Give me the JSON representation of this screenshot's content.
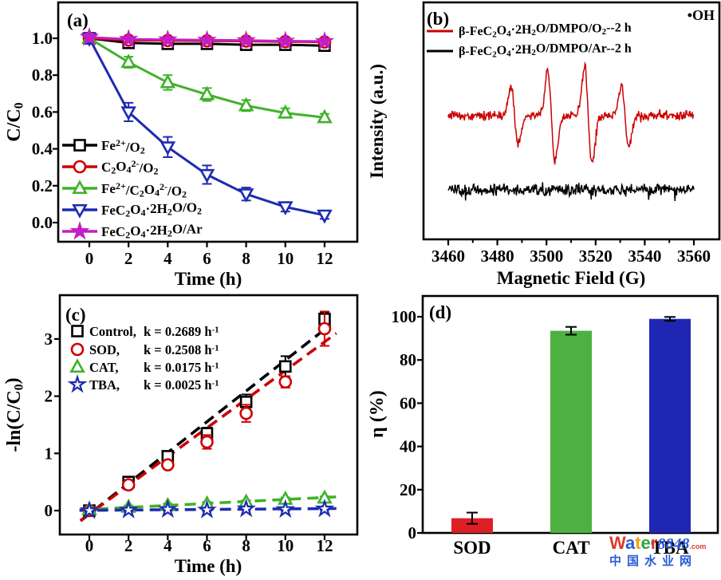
{
  "figure": {
    "background": "#ffffff",
    "watermark": {
      "letters": [
        {
          "ch": "W",
          "color": "#e0392b"
        },
        {
          "ch": "a",
          "color": "#2a5bd7"
        },
        {
          "ch": "t",
          "color": "#f5a100"
        },
        {
          "ch": "e",
          "color": "#2fa43c"
        },
        {
          "ch": "r",
          "color": "#e0392b"
        }
      ],
      "number": "8848",
      "number_color": "#2a5bd7",
      "suffix": ".com",
      "suffix_color": "#e0392b",
      "subtitle": "中国水业网",
      "subtitle_color": "#2a5bd7"
    }
  },
  "chart_data": [
    {
      "id": "a",
      "type": "line",
      "panel_label": "(a)",
      "xlabel": "Time (h)",
      "ylabel": "C/C_{0}",
      "x_tick_labels": [
        "0",
        "2",
        "4",
        "6",
        "8",
        "10",
        "12"
      ],
      "x_tick_values": [
        0,
        2,
        4,
        6,
        8,
        10,
        12
      ],
      "y_tick_labels": [
        "0.0",
        "0.2",
        "0.4",
        "0.6",
        "0.8",
        "1.0"
      ],
      "y_tick_values": [
        0,
        0.2,
        0.4,
        0.6,
        0.8,
        1.0
      ],
      "xlim": [
        -1.6,
        13.7
      ],
      "ylim": [
        -0.1,
        1.19
      ],
      "grid": false,
      "legend_position": "lower-left",
      "x": [
        0,
        2,
        4,
        6,
        8,
        10,
        12
      ],
      "series": [
        {
          "name": "Fe^{2+}/O_{2}",
          "color": "#000000",
          "marker": "square",
          "filled": false,
          "values": [
            1.0,
            0.975,
            0.97,
            0.97,
            0.965,
            0.965,
            0.96
          ],
          "err": [
            0.025,
            0.02,
            0.02,
            0.02,
            0.02,
            0.02,
            0.025
          ]
        },
        {
          "name": "C_{2}O_{4}^{2-}/O_{2}",
          "color": "#cc0000",
          "marker": "circle",
          "filled": false,
          "values": [
            1.0,
            0.99,
            0.988,
            0.986,
            0.985,
            0.982,
            0.98
          ],
          "err": [
            0.02,
            0.015,
            0.015,
            0.015,
            0.015,
            0.015,
            0.015
          ]
        },
        {
          "name": "Fe^{2+}/C_{2}O_{4}^{2-}/O_{2}",
          "color": "#3fb229",
          "marker": "triangle-up",
          "filled": false,
          "values": [
            1.0,
            0.87,
            0.76,
            0.695,
            0.635,
            0.595,
            0.57
          ],
          "err": [
            0.025,
            0.03,
            0.04,
            0.035,
            0.03,
            0.025,
            0.02
          ]
        },
        {
          "name": "FeC_{2}O_{4}·2H_{2}O/O_{2}",
          "color": "#1f2bb0",
          "marker": "triangle-down",
          "filled": false,
          "values": [
            1.0,
            0.6,
            0.41,
            0.26,
            0.155,
            0.085,
            0.04
          ],
          "err": [
            0.03,
            0.05,
            0.055,
            0.05,
            0.035,
            0.025,
            0.02
          ]
        },
        {
          "name": "FeC_{2}O_{4}·2H_{2}O/Ar",
          "color": "#c31ec3",
          "marker": "star",
          "filled": true,
          "values": [
            1.005,
            0.995,
            0.992,
            0.99,
            0.988,
            0.985,
            0.983
          ],
          "err": [
            0.02,
            0.015,
            0.015,
            0.015,
            0.015,
            0.015,
            0.015
          ]
        }
      ]
    },
    {
      "id": "b",
      "type": "line",
      "panel_label": "(b)",
      "xlabel": "Magnetic Field (G)",
      "ylabel": "Intensity (a.u.)",
      "annotation": "•OH",
      "x_tick_labels": [
        "3460",
        "3480",
        "3500",
        "3520",
        "3540",
        "3560"
      ],
      "x_tick_values": [
        3460,
        3480,
        3500,
        3520,
        3540,
        3560
      ],
      "minor_tick_step": 10,
      "xlim": [
        3450,
        3570
      ],
      "trace_range": [
        3460,
        3560
      ],
      "series": [
        {
          "name": "β-FeC_{2}O_{4}·2H_{2}O/DMPO/O_{2}--2 h",
          "color": "#cc0000",
          "baseline_frac": 0.478,
          "noise_frac": 0.015,
          "peak_height_frac": 0.195,
          "seed": 42,
          "peaks": [
            {
              "center": 3487,
              "height": 0.62
            },
            {
              "center": 3502,
              "height": 1.0
            },
            {
              "center": 3517,
              "height": 1.05
            },
            {
              "center": 3532,
              "height": 0.65
            }
          ]
        },
        {
          "name": "β-FeC_{2}O_{4}·2H_{2}O/DMPO/Ar--2 h",
          "color": "#000000",
          "baseline_frac": 0.791,
          "noise_frac": 0.0185,
          "peak_height_frac": 0,
          "seed": 7,
          "peaks": []
        }
      ]
    },
    {
      "id": "c",
      "type": "line",
      "panel_label": "(c)",
      "xlabel": "Time (h)",
      "ylabel": "-ln(C/C_{0})",
      "x_tick_labels": [
        "0",
        "2",
        "4",
        "6",
        "8",
        "10",
        "12"
      ],
      "x_tick_values": [
        0,
        2,
        4,
        6,
        8,
        10,
        12
      ],
      "y_tick_labels": [
        "0",
        "1",
        "2",
        "3"
      ],
      "y_tick_values": [
        0,
        1,
        2,
        3
      ],
      "xlim": [
        -1.6,
        13.7
      ],
      "ylim": [
        -0.39,
        3.77
      ],
      "legend_position": "upper-left",
      "x": [
        0,
        2,
        4,
        6,
        8,
        10,
        12
      ],
      "series": [
        {
          "name": "Control,",
          "k_label": "k = 0.2689 h^{-1}",
          "color": "#000000",
          "marker": "square",
          "filled": false,
          "values": [
            0,
            0.5,
            0.95,
            1.35,
            1.9,
            2.52,
            3.35
          ],
          "err": [
            0.04,
            0.05,
            0.08,
            0.1,
            0.13,
            0.18,
            0.12
          ],
          "fit": {
            "slope": 0.2689,
            "intercept": -0.06,
            "x_start": -0.45,
            "x_end": 12.3
          }
        },
        {
          "name": "SOD,",
          "k_label": "k = 0.2508 h^{-1}",
          "color": "#cc0000",
          "marker": "circle",
          "filled": false,
          "values": [
            0,
            0.45,
            0.8,
            1.2,
            1.7,
            2.25,
            3.18
          ],
          "err": [
            0.04,
            0.05,
            0.07,
            0.12,
            0.15,
            0.1,
            0.3
          ],
          "fit": {
            "slope": 0.2508,
            "intercept": -0.06,
            "x_start": -0.45,
            "x_end": 12.6
          }
        },
        {
          "name": "CAT,",
          "k_label": "k = 0.0175 h^{-1}",
          "color": "#3fb229",
          "marker": "triangle-up",
          "filled": false,
          "values": [
            0.02,
            0.06,
            0.09,
            0.12,
            0.15,
            0.2,
            0.22
          ],
          "err": [
            0.03,
            0.03,
            0.03,
            0.03,
            0.03,
            0.03,
            0.03
          ],
          "fit": {
            "slope": 0.0175,
            "intercept": 0.02,
            "x_start": -0.5,
            "x_end": 12.6
          }
        },
        {
          "name": "TBA,",
          "k_label": "k = 0.0025 h^{-1}",
          "color": "#1f2bb0",
          "marker": "star",
          "filled": false,
          "values": [
            0.0,
            0.01,
            0.02,
            0.01,
            0.03,
            0.02,
            0.03
          ],
          "err": [
            0.02,
            0.02,
            0.02,
            0.02,
            0.02,
            0.02,
            0.02
          ],
          "fit": {
            "slope": 0.0025,
            "intercept": 0.005,
            "x_start": -0.5,
            "x_end": 12.6
          }
        }
      ]
    },
    {
      "id": "d",
      "type": "bar",
      "panel_label": "(d)",
      "xlabel": "",
      "ylabel": "η (%)",
      "categories": [
        "SOD",
        "CAT",
        "TBA"
      ],
      "values": [
        6.8,
        93.5,
        99.0
      ],
      "errors": [
        2.6,
        1.8,
        0.9
      ],
      "colors": [
        "#dd1f26",
        "#4cb140",
        "#2026b4"
      ],
      "y_tick_labels": [
        "0",
        "20",
        "40",
        "60",
        "80",
        "100"
      ],
      "y_tick_values": [
        0,
        20,
        40,
        60,
        80,
        100
      ],
      "ylim": [
        0,
        109
      ]
    }
  ]
}
